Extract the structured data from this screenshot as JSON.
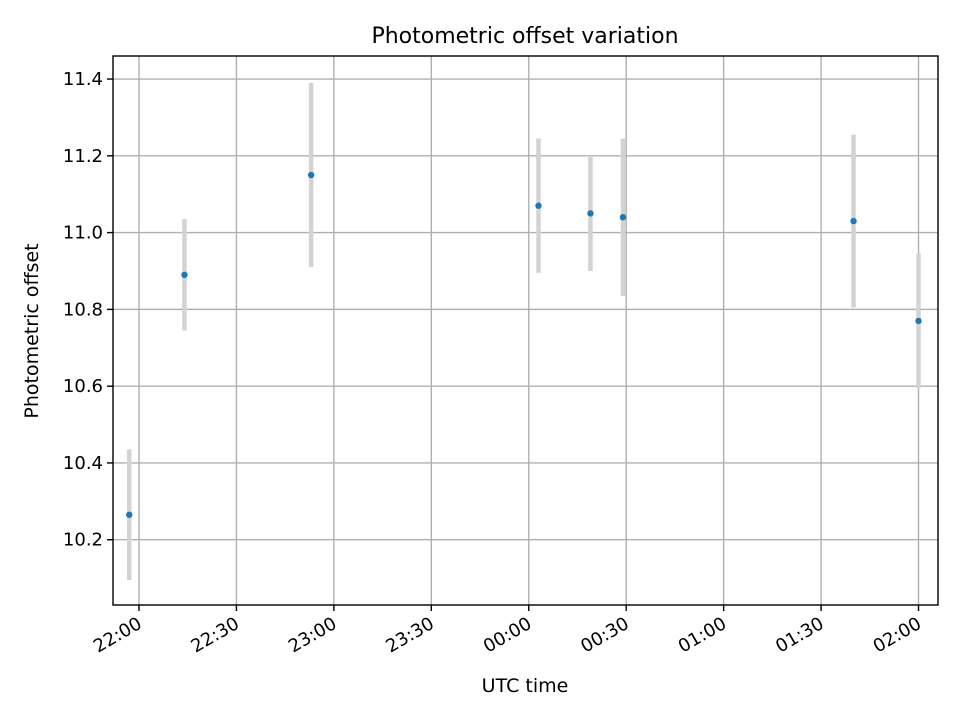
{
  "chart_data": {
    "type": "scatter",
    "title": "Photometric offset variation",
    "xlabel": "UTC time",
    "ylabel": "Photometric offset",
    "x_is_time": true,
    "xlim": [
      "21:52",
      "02:06"
    ],
    "ylim": [
      10.03,
      11.46
    ],
    "x_ticks": [
      "22:00",
      "22:30",
      "23:00",
      "23:30",
      "00:00",
      "00:30",
      "01:00",
      "01:30",
      "02:00"
    ],
    "y_ticks": [
      10.2,
      10.4,
      10.6,
      10.8,
      11.0,
      11.2,
      11.4
    ],
    "grid": true,
    "point_color": "#1f77b4",
    "errorbar_color": "#d3d3d3",
    "points": [
      {
        "time": "21:57",
        "y": 10.265,
        "ylow": 10.095,
        "yhigh": 10.435
      },
      {
        "time": "22:14",
        "y": 10.89,
        "ylow": 10.745,
        "yhigh": 11.035
      },
      {
        "time": "22:53",
        "y": 11.15,
        "ylow": 10.91,
        "yhigh": 11.39
      },
      {
        "time": "00:03",
        "y": 11.07,
        "ylow": 10.895,
        "yhigh": 11.245
      },
      {
        "time": "00:19",
        "y": 11.05,
        "ylow": 10.9,
        "yhigh": 11.2
      },
      {
        "time": "00:29",
        "y": 11.04,
        "ylow": 10.835,
        "yhigh": 11.245
      },
      {
        "time": "01:40",
        "y": 11.03,
        "ylow": 10.805,
        "yhigh": 11.255
      },
      {
        "time": "02:00",
        "y": 10.77,
        "ylow": 10.595,
        "yhigh": 10.945
      }
    ]
  }
}
